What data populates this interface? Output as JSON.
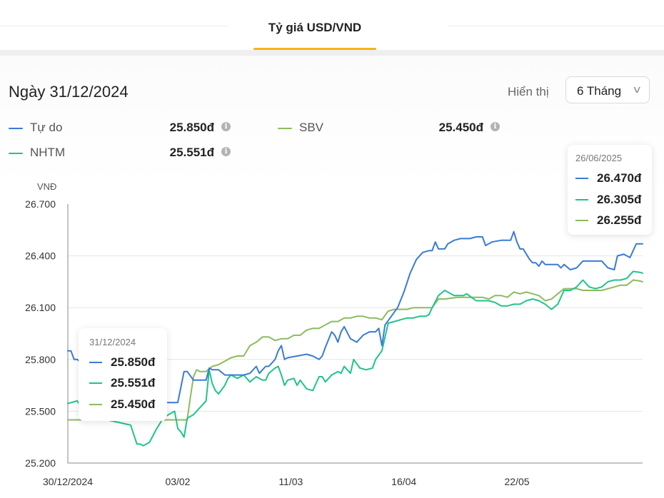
{
  "tab": {
    "label": "Tỷ giá USD/VND"
  },
  "header": {
    "date_title": "Ngày 31/12/2024",
    "show_label": "Hiển thị",
    "range_value": "6 Tháng"
  },
  "legend": [
    {
      "name": "Tự do",
      "value": "25.850đ",
      "color": "#3a7bd5"
    },
    {
      "name": "SBV",
      "value": "25.450đ",
      "color": "#8dbb5e"
    },
    {
      "name": "NHTM",
      "value": "25.551đ",
      "color": "#1fc48a"
    }
  ],
  "tooltip_left": {
    "date": "31/12/2024",
    "values": [
      "25.850đ",
      "25.551đ",
      "25.450đ"
    ]
  },
  "tooltip_right": {
    "date": "26/06/2025",
    "values": [
      "26.470đ",
      "26.305đ",
      "26.255đ"
    ]
  },
  "chart_data": {
    "type": "line",
    "ylabel": "VNĐ",
    "ylim": [
      25200,
      26700
    ],
    "yticks": [
      "26.700",
      "26.400",
      "26.100",
      "25.800",
      "25.500",
      "25.200"
    ],
    "ytick_values": [
      26700,
      26400,
      26100,
      25800,
      25500,
      25200
    ],
    "xticks": [
      "30/12/2024",
      "03/02",
      "11/03",
      "16/04",
      "22/05"
    ],
    "xtick_days": [
      0,
      35,
      71,
      107,
      143
    ],
    "x_start": "2024-12-30",
    "x_end": "2025-06-26",
    "grid": true,
    "series": [
      {
        "name": "Tự do",
        "color": "#3a7bd5",
        "points": [
          [
            0,
            25850
          ],
          [
            1,
            25850
          ],
          [
            2,
            25800
          ],
          [
            3,
            25800
          ],
          [
            5,
            25770
          ],
          [
            8,
            25650
          ],
          [
            10,
            25600
          ],
          [
            15,
            25560
          ],
          [
            17,
            25550
          ],
          [
            25,
            25550
          ],
          [
            26,
            25550
          ],
          [
            28,
            25550
          ],
          [
            30,
            25550
          ],
          [
            35,
            25550
          ],
          [
            37,
            25730
          ],
          [
            38,
            25730
          ],
          [
            40,
            25680
          ],
          [
            44,
            25680
          ],
          [
            45,
            25750
          ],
          [
            46,
            25740
          ],
          [
            48,
            25740
          ],
          [
            50,
            25710
          ],
          [
            52,
            25710
          ],
          [
            56,
            25710
          ],
          [
            58,
            25720
          ],
          [
            60,
            25760
          ],
          [
            61,
            25720
          ],
          [
            62,
            25740
          ],
          [
            63,
            25760
          ],
          [
            64,
            25760
          ],
          [
            66,
            25800
          ],
          [
            67,
            25850
          ],
          [
            68,
            25880
          ],
          [
            69,
            25800
          ],
          [
            70,
            25810
          ],
          [
            73,
            25820
          ],
          [
            76,
            25830
          ],
          [
            78,
            25820
          ],
          [
            80,
            25800
          ],
          [
            81,
            25820
          ],
          [
            82,
            25870
          ],
          [
            84,
            25960
          ],
          [
            85,
            25940
          ],
          [
            86,
            25900
          ],
          [
            87,
            25960
          ],
          [
            88,
            25990
          ],
          [
            90,
            25920
          ],
          [
            92,
            25900
          ],
          [
            94,
            25940
          ],
          [
            96,
            25960
          ],
          [
            98,
            25960
          ],
          [
            99,
            25980
          ],
          [
            100,
            25880
          ],
          [
            101,
            26000
          ],
          [
            103,
            26050
          ],
          [
            105,
            26100
          ],
          [
            107,
            26190
          ],
          [
            109,
            26300
          ],
          [
            111,
            26380
          ],
          [
            113,
            26420
          ],
          [
            115,
            26430
          ],
          [
            116,
            26430
          ],
          [
            117,
            26480
          ],
          [
            118,
            26440
          ],
          [
            120,
            26440
          ],
          [
            121,
            26470
          ],
          [
            123,
            26490
          ],
          [
            125,
            26500
          ],
          [
            126,
            26500
          ],
          [
            128,
            26500
          ],
          [
            130,
            26510
          ],
          [
            132,
            26510
          ],
          [
            133,
            26460
          ],
          [
            135,
            26480
          ],
          [
            138,
            26490
          ],
          [
            141,
            26490
          ],
          [
            142,
            26540
          ],
          [
            143,
            26480
          ],
          [
            144,
            26440
          ],
          [
            145,
            26440
          ],
          [
            146,
            26410
          ],
          [
            147,
            26380
          ],
          [
            148,
            26360
          ],
          [
            149,
            26360
          ],
          [
            150,
            26340
          ],
          [
            151,
            26370
          ],
          [
            152,
            26350
          ],
          [
            156,
            26350
          ],
          [
            157,
            26330
          ],
          [
            158,
            26350
          ],
          [
            160,
            26320
          ],
          [
            162,
            26330
          ],
          [
            164,
            26370
          ],
          [
            170,
            26370
          ],
          [
            172,
            26330
          ],
          [
            174,
            26320
          ],
          [
            175,
            26400
          ],
          [
            177,
            26410
          ],
          [
            179,
            26390
          ],
          [
            181,
            26470
          ],
          [
            182,
            26470
          ],
          [
            183,
            26470
          ]
        ]
      },
      {
        "name": "NHTM",
        "color": "#1fc48a",
        "points": [
          [
            0,
            25545
          ],
          [
            1,
            25550
          ],
          [
            3,
            25560
          ],
          [
            5,
            25500
          ],
          [
            8,
            25470
          ],
          [
            10,
            25460
          ],
          [
            15,
            25440
          ],
          [
            20,
            25420
          ],
          [
            22,
            25310
          ],
          [
            23,
            25310
          ],
          [
            24,
            25300
          ],
          [
            26,
            25320
          ],
          [
            28,
            25390
          ],
          [
            30,
            25450
          ],
          [
            32,
            25480
          ],
          [
            34,
            25500
          ],
          [
            35,
            25400
          ],
          [
            36,
            25380
          ],
          [
            37,
            25350
          ],
          [
            38,
            25460
          ],
          [
            40,
            25480
          ],
          [
            42,
            25520
          ],
          [
            44,
            25560
          ],
          [
            45,
            25740
          ],
          [
            46,
            25660
          ],
          [
            47,
            25620
          ],
          [
            48,
            25600
          ],
          [
            50,
            25650
          ],
          [
            51,
            25690
          ],
          [
            52,
            25710
          ],
          [
            54,
            25690
          ],
          [
            56,
            25710
          ],
          [
            58,
            25670
          ],
          [
            60,
            25700
          ],
          [
            62,
            25680
          ],
          [
            63,
            25680
          ],
          [
            64,
            25720
          ],
          [
            66,
            25750
          ],
          [
            67,
            25760
          ],
          [
            68,
            25710
          ],
          [
            69,
            25650
          ],
          [
            70,
            25680
          ],
          [
            72,
            25690
          ],
          [
            73,
            25650
          ],
          [
            74,
            25680
          ],
          [
            76,
            25630
          ],
          [
            78,
            25620
          ],
          [
            80,
            25700
          ],
          [
            81,
            25700
          ],
          [
            82,
            25670
          ],
          [
            84,
            25710
          ],
          [
            86,
            25730
          ],
          [
            87,
            25720
          ],
          [
            88,
            25760
          ],
          [
            90,
            25720
          ],
          [
            91,
            25800
          ],
          [
            93,
            25750
          ],
          [
            95,
            25740
          ],
          [
            97,
            25750
          ],
          [
            98,
            25800
          ],
          [
            100,
            25850
          ],
          [
            102,
            26010
          ],
          [
            104,
            26020
          ],
          [
            106,
            26030
          ],
          [
            108,
            26040
          ],
          [
            110,
            26040
          ],
          [
            112,
            26050
          ],
          [
            114,
            26050
          ],
          [
            115,
            26060
          ],
          [
            116,
            26100
          ],
          [
            118,
            26170
          ],
          [
            120,
            26200
          ],
          [
            123,
            26170
          ],
          [
            126,
            26170
          ],
          [
            127,
            26180
          ],
          [
            130,
            26140
          ],
          [
            132,
            26140
          ],
          [
            134,
            26140
          ],
          [
            136,
            26130
          ],
          [
            138,
            26110
          ],
          [
            140,
            26110
          ],
          [
            142,
            26120
          ],
          [
            144,
            26120
          ],
          [
            146,
            26140
          ],
          [
            148,
            26150
          ],
          [
            150,
            26140
          ],
          [
            152,
            26120
          ],
          [
            154,
            26090
          ],
          [
            156,
            26120
          ],
          [
            158,
            26200
          ],
          [
            160,
            26200
          ],
          [
            162,
            26220
          ],
          [
            164,
            26260
          ],
          [
            166,
            26220
          ],
          [
            168,
            26210
          ],
          [
            170,
            26220
          ],
          [
            172,
            26250
          ],
          [
            174,
            26260
          ],
          [
            176,
            26260
          ],
          [
            178,
            26270
          ],
          [
            180,
            26310
          ],
          [
            182,
            26305
          ],
          [
            183,
            26300
          ]
        ]
      },
      {
        "name": "SBV",
        "color": "#8dbb5e",
        "points": [
          [
            0,
            25450
          ],
          [
            5,
            25450
          ],
          [
            10,
            25450
          ],
          [
            15,
            25450
          ],
          [
            20,
            25450
          ],
          [
            25,
            25450
          ],
          [
            30,
            25450
          ],
          [
            35,
            25450
          ],
          [
            37,
            25450
          ],
          [
            38,
            25450
          ],
          [
            39,
            25580
          ],
          [
            40,
            25700
          ],
          [
            41,
            25740
          ],
          [
            42,
            25730
          ],
          [
            44,
            25730
          ],
          [
            46,
            25760
          ],
          [
            48,
            25770
          ],
          [
            50,
            25790
          ],
          [
            52,
            25810
          ],
          [
            54,
            25820
          ],
          [
            56,
            25820
          ],
          [
            58,
            25880
          ],
          [
            60,
            25900
          ],
          [
            62,
            25930
          ],
          [
            64,
            25930
          ],
          [
            66,
            25910
          ],
          [
            68,
            25920
          ],
          [
            70,
            25920
          ],
          [
            72,
            25940
          ],
          [
            74,
            25940
          ],
          [
            76,
            25970
          ],
          [
            78,
            25980
          ],
          [
            80,
            25980
          ],
          [
            82,
            26000
          ],
          [
            84,
            26020
          ],
          [
            86,
            26020
          ],
          [
            88,
            26040
          ],
          [
            90,
            26040
          ],
          [
            92,
            26050
          ],
          [
            94,
            26050
          ],
          [
            96,
            26040
          ],
          [
            98,
            26040
          ],
          [
            100,
            26030
          ],
          [
            102,
            26080
          ],
          [
            104,
            26090
          ],
          [
            106,
            26090
          ],
          [
            108,
            26090
          ],
          [
            110,
            26100
          ],
          [
            112,
            26100
          ],
          [
            114,
            26100
          ],
          [
            116,
            26100
          ],
          [
            118,
            26150
          ],
          [
            120,
            26150
          ],
          [
            124,
            26160
          ],
          [
            128,
            26160
          ],
          [
            132,
            26160
          ],
          [
            134,
            26150
          ],
          [
            136,
            26170
          ],
          [
            138,
            26170
          ],
          [
            140,
            26160
          ],
          [
            142,
            26190
          ],
          [
            144,
            26180
          ],
          [
            146,
            26190
          ],
          [
            148,
            26180
          ],
          [
            150,
            26170
          ],
          [
            152,
            26140
          ],
          [
            154,
            26150
          ],
          [
            156,
            26180
          ],
          [
            158,
            26210
          ],
          [
            160,
            26210
          ],
          [
            162,
            26210
          ],
          [
            164,
            26200
          ],
          [
            166,
            26200
          ],
          [
            168,
            26200
          ],
          [
            170,
            26200
          ],
          [
            172,
            26210
          ],
          [
            174,
            26220
          ],
          [
            176,
            26230
          ],
          [
            178,
            26230
          ],
          [
            180,
            26260
          ],
          [
            182,
            26255
          ],
          [
            183,
            26250
          ]
        ]
      }
    ]
  }
}
